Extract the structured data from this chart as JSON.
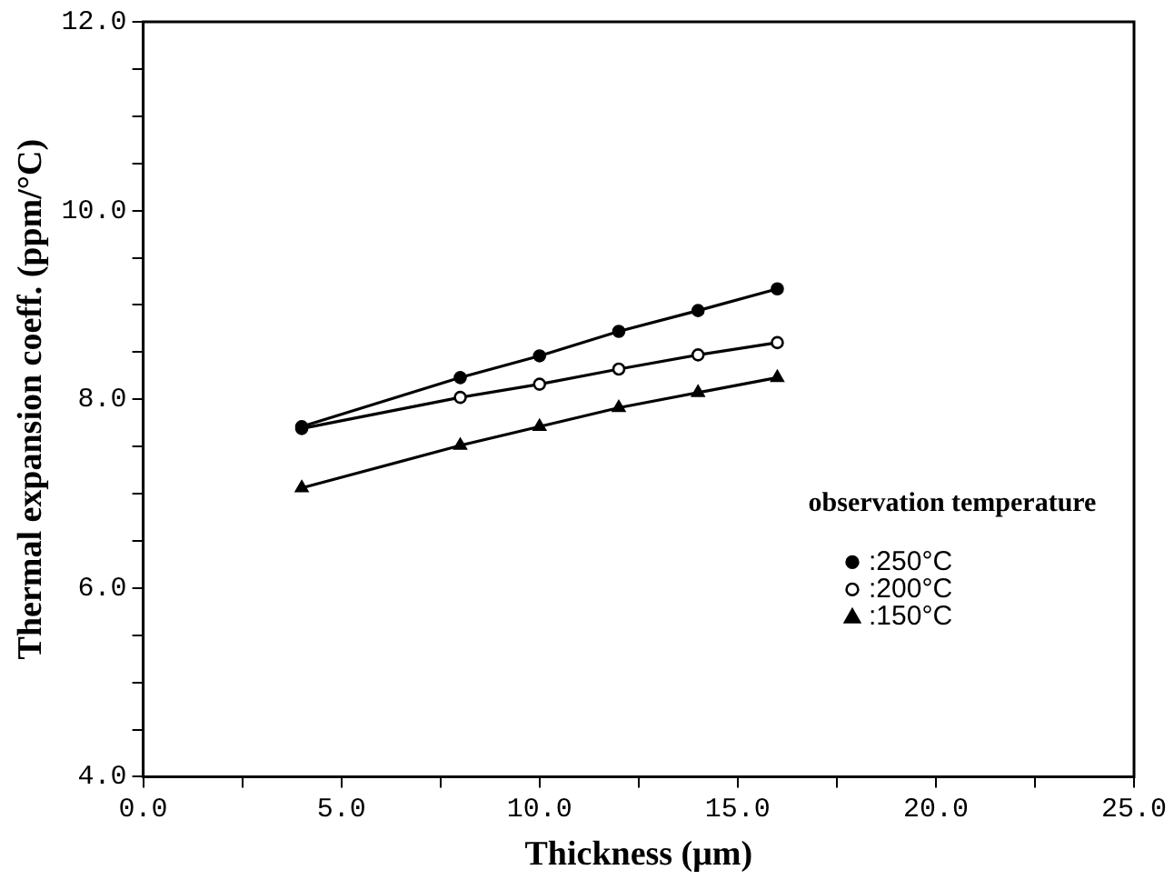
{
  "chart_data": {
    "type": "line",
    "xlabel": "Thickness (μm)",
    "ylabel": "Thermal expansion coeff. (ppm/°C)",
    "legend_title": "observation temperature",
    "legend": "bottom right",
    "grid": false,
    "line_style": "solid",
    "xlim": [
      0,
      25
    ],
    "ylim": [
      4,
      12
    ],
    "xticks": [
      {
        "value": 0,
        "label": "0.0"
      },
      {
        "value": 2.5,
        "label": null
      },
      {
        "value": 5,
        "label": "5.0"
      },
      {
        "value": 7.5,
        "label": null
      },
      {
        "value": 10,
        "label": "10.0"
      },
      {
        "value": 12.5,
        "label": null
      },
      {
        "value": 15,
        "label": "15.0"
      },
      {
        "value": 17.5,
        "label": null
      },
      {
        "value": 20,
        "label": "20.0"
      },
      {
        "value": 22.5,
        "label": null
      },
      {
        "value": 25,
        "label": "25.0"
      }
    ],
    "yticks": [
      {
        "value": 4,
        "label": "4.0"
      },
      {
        "value": 4.5,
        "label": null
      },
      {
        "value": 5,
        "label": null
      },
      {
        "value": 5.5,
        "label": null
      },
      {
        "value": 6,
        "label": "6.0"
      },
      {
        "value": 6.5,
        "label": null
      },
      {
        "value": 7,
        "label": null
      },
      {
        "value": 7.5,
        "label": null
      },
      {
        "value": 8,
        "label": "8.0"
      },
      {
        "value": 8.5,
        "label": null
      },
      {
        "value": 9,
        "label": null
      },
      {
        "value": 9.5,
        "label": null
      },
      {
        "value": 10,
        "label": "10.0"
      },
      {
        "value": 10.5,
        "label": null
      },
      {
        "value": 11,
        "label": null
      },
      {
        "value": 11.5,
        "label": null
      },
      {
        "value": 12,
        "label": "12.0"
      }
    ],
    "x": [
      4,
      8,
      10,
      12,
      14,
      16
    ],
    "series": [
      {
        "name": ":250°C",
        "color": "#000000",
        "marker": "circle",
        "values": [
          7.71,
          8.23,
          8.46,
          8.72,
          8.94,
          9.17
        ]
      },
      {
        "name": ":200°C",
        "color": "#000000",
        "marker": "circle",
        "values": [
          7.69,
          8.02,
          8.16,
          8.32,
          8.47,
          8.6
        ]
      },
      {
        "name": ":150°C",
        "color": "#000000",
        "marker": "triangle",
        "values": [
          7.06,
          7.51,
          7.71,
          7.91,
          8.07,
          8.23
        ]
      }
    ]
  }
}
